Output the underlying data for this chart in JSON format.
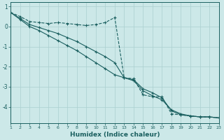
{
  "xlabel": "Humidex (Indice chaleur)",
  "bg_color": "#cce8e8",
  "grid_color": "#aacfcf",
  "line_color": "#1a5f5f",
  "xlim": [
    1,
    23
  ],
  "ylim": [
    -4.8,
    1.2
  ],
  "yticks": [
    1,
    0,
    -1,
    -2,
    -3,
    -4
  ],
  "xticks": [
    1,
    2,
    3,
    4,
    5,
    6,
    7,
    8,
    9,
    10,
    11,
    12,
    13,
    14,
    15,
    16,
    17,
    18,
    19,
    20,
    21,
    22,
    23
  ],
  "line1_x": [
    1,
    2,
    3,
    4,
    5,
    6,
    7,
    8,
    9,
    10,
    11,
    12,
    13,
    14,
    15,
    16,
    17,
    18,
    19,
    20,
    21,
    22,
    23
  ],
  "line1_y": [
    0.7,
    0.5,
    0.25,
    0.2,
    0.15,
    0.2,
    0.15,
    0.1,
    0.05,
    0.1,
    0.2,
    0.45,
    -2.55,
    -2.6,
    -3.4,
    -3.5,
    -3.5,
    -4.35,
    -4.4,
    -4.45,
    -4.5,
    -4.5,
    -4.55
  ],
  "line1_dashed": true,
  "line2_x": [
    1,
    2,
    3,
    4,
    5,
    6,
    7,
    8,
    9,
    10,
    11,
    12,
    13,
    14,
    15,
    16,
    17,
    18,
    19,
    20,
    21,
    22,
    23
  ],
  "line2_y": [
    0.7,
    0.4,
    0.1,
    -0.05,
    -0.2,
    -0.35,
    -0.55,
    -0.75,
    -1.0,
    -1.25,
    -1.5,
    -1.8,
    -2.55,
    -2.65,
    -3.1,
    -3.3,
    -3.55,
    -4.2,
    -4.4,
    -4.45,
    -4.5,
    -4.5,
    -4.55
  ],
  "line2_dashed": false,
  "line3_x": [
    1,
    2,
    3,
    4,
    5,
    6,
    7,
    8,
    9,
    10,
    11,
    12,
    13,
    14,
    15,
    16,
    17,
    18,
    19,
    20,
    21,
    22,
    23
  ],
  "line3_y": [
    0.7,
    0.35,
    0.0,
    -0.2,
    -0.45,
    -0.7,
    -0.95,
    -1.2,
    -1.5,
    -1.8,
    -2.1,
    -2.4,
    -2.55,
    -2.7,
    -3.2,
    -3.45,
    -3.65,
    -4.15,
    -4.35,
    -4.45,
    -4.5,
    -4.5,
    -4.55
  ],
  "line3_dashed": false
}
